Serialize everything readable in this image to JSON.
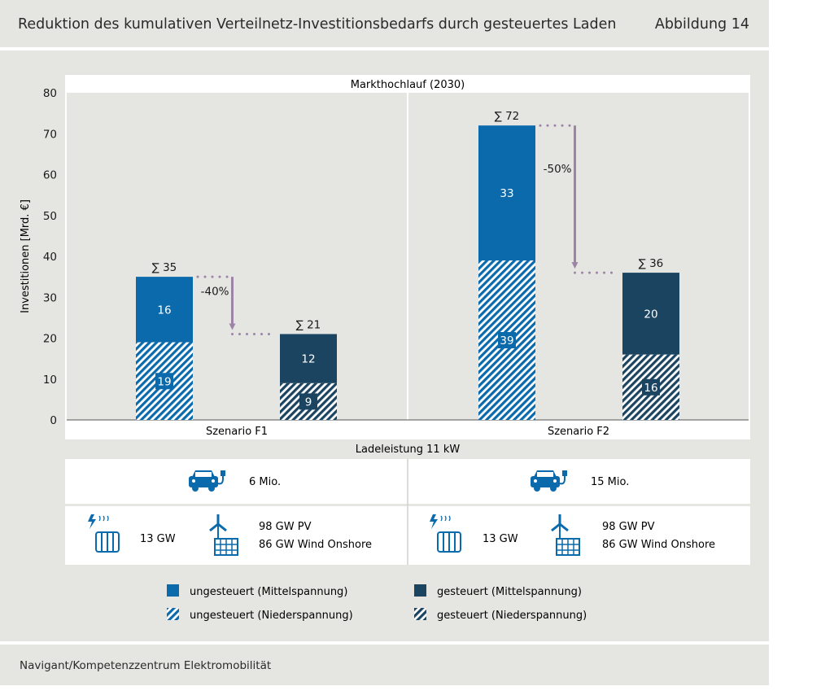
{
  "header": {
    "title": "Reduktion des kumulativen Verteilnetz-Investitionsbedarfs durch gesteuertes Laden",
    "figure_label": "Abbildung 14"
  },
  "footer": {
    "source": "Navigant/Kompetenzzentrum Elektromobilität"
  },
  "colors": {
    "ungesteuert": "#0a6aab",
    "gesteuert": "#1b4461",
    "arrow": "#9d84a6",
    "background": "#e5e5e1"
  },
  "chart_data": {
    "type": "bar",
    "stacked": true,
    "title": "Markthochlauf (2030)",
    "xlabel": "Ladeleistung 11 kW",
    "ylabel": "Investitionen [Mrd. €]",
    "ylim": [
      0,
      80
    ],
    "yticks": [
      0,
      10,
      20,
      30,
      40,
      50,
      60,
      70,
      80
    ],
    "grid": false,
    "legend_position": "bottom",
    "series": [
      {
        "name": "ungesteuert (Mittelspannung)",
        "style": "solid",
        "color": "#0a6aab"
      },
      {
        "name": "gesteuert (Mittelspannung)",
        "style": "solid",
        "color": "#1b4461"
      },
      {
        "name": "ungesteuert (Niederspannung)",
        "style": "hatched",
        "color": "#0a6aab"
      },
      {
        "name": "gesteuert (Niederspannung)",
        "style": "hatched",
        "color": "#1b4461"
      }
    ],
    "groups": [
      {
        "name": "Szenario F1",
        "reduction_label": "-40%",
        "bars": [
          {
            "case": "ungesteuert",
            "total_label": "∑ 35",
            "niederspannung": 19,
            "mittelspannung": 16,
            "total": 35
          },
          {
            "case": "gesteuert",
            "total_label": "∑ 21",
            "niederspannung": 9,
            "mittelspannung": 12,
            "total": 21
          }
        ],
        "info": {
          "vehicles": "6 Mio.",
          "heat": "13 GW",
          "renewables_pv": "98 GW PV",
          "renewables_wind": "86 GW Wind Onshore"
        }
      },
      {
        "name": "Szenario F2",
        "reduction_label": "-50%",
        "bars": [
          {
            "case": "ungesteuert",
            "total_label": "∑ 72",
            "niederspannung": 39,
            "mittelspannung": 33,
            "total": 72
          },
          {
            "case": "gesteuert",
            "total_label": "∑ 36",
            "niederspannung": 16,
            "mittelspannung": 20,
            "total": 36
          }
        ],
        "info": {
          "vehicles": "15 Mio.",
          "heat": "13 GW",
          "renewables_pv": "98 GW PV",
          "renewables_wind": "86 GW Wind Onshore"
        }
      }
    ]
  }
}
